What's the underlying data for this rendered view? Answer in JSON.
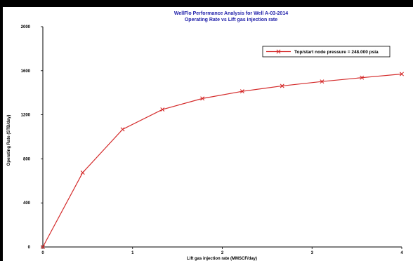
{
  "chart_data": {
    "type": "line",
    "title": "WellFlo Performance Analysis for Well A-03-2014",
    "subtitle": "Operating Rate vs Lift gas injection rate",
    "xlabel": "Lift gas injection rate (MMSCF/day)",
    "ylabel": "Operating Rate (STB/day)",
    "xlim": [
      0,
      4
    ],
    "ylim": [
      0,
      2000
    ],
    "xticks": [
      0,
      1,
      2,
      3,
      4
    ],
    "yticks": [
      0,
      400,
      800,
      1200,
      1600,
      2000
    ],
    "grid": false,
    "legend_position": "top-right",
    "series": [
      {
        "name": "Top/start node pressure = 248.000 psia",
        "color": "#d42a2a",
        "marker": "x",
        "x": [
          0,
          0.444,
          0.889,
          1.333,
          1.778,
          2.222,
          2.667,
          3.111,
          3.556,
          4.0
        ],
        "y": [
          0,
          675,
          1068,
          1248,
          1348,
          1413,
          1462,
          1502,
          1537,
          1570
        ]
      }
    ]
  }
}
